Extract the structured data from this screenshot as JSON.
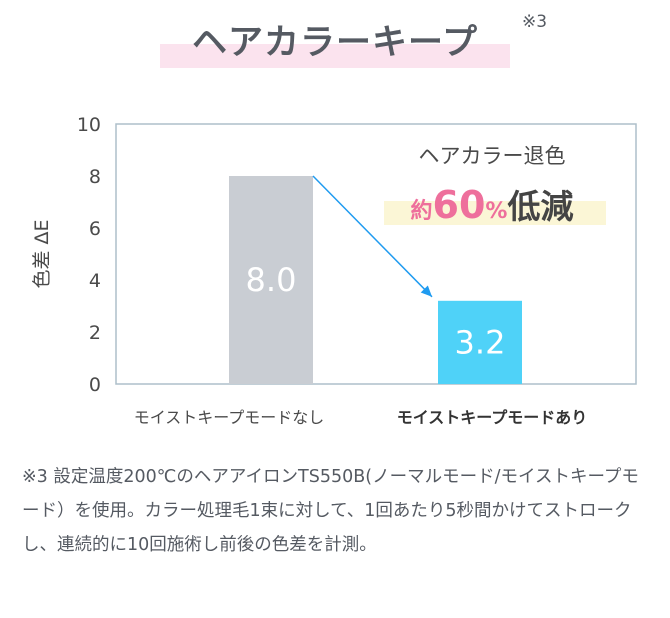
{
  "header": {
    "title": "ヘアカラーキープ",
    "note_mark": "※3"
  },
  "chart_data": {
    "type": "bar",
    "categories": [
      "モイストキープモードなし",
      "モイストキープモードあり"
    ],
    "values": [
      8.0,
      3.2
    ],
    "value_labels": [
      "8.0",
      "3.2"
    ],
    "ylabel": "色差 ΔE",
    "xlabel": "",
    "ylim": [
      0,
      10
    ],
    "yticks": [
      0,
      2,
      4,
      6,
      8,
      10
    ],
    "grid": false,
    "bar_colors": [
      "#c9cdd3",
      "#4fd2f8"
    ],
    "arrow_color": "#1f9bf0",
    "annotation": {
      "line1": "ヘアカラー退色",
      "prefix": "約",
      "number": "60",
      "unit": "%",
      "suffix": "低減",
      "accent_color": "#ee6f9c",
      "highlight_color": "#fbf6d6"
    }
  },
  "footnote": "※3 設定温度200℃のヘアアイロンTS550B(ノーマルモード/モイストキープモード）を使用。カラー処理毛1束に対して、1回あたり5秒間かけてストロークし、連続的に10回施術し前後の色差を計測。"
}
